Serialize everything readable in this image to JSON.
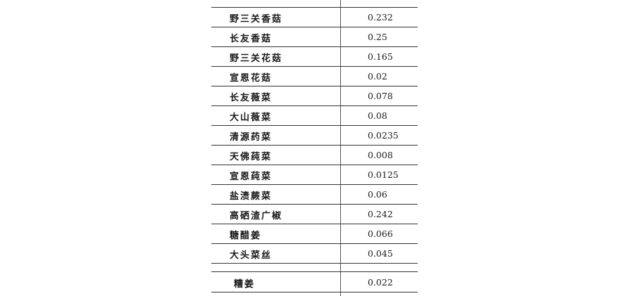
{
  "table": {
    "rows": [
      {
        "name": "野三关香菇",
        "value": "0.232"
      },
      {
        "name": "长友香菇",
        "value": "0.25"
      },
      {
        "name": "野三关花菇",
        "value": "0.165"
      },
      {
        "name": "宣恩花菇",
        "value": "0.02"
      },
      {
        "name": "长友薇菜",
        "value": "0.078"
      },
      {
        "name": "大山薇菜",
        "value": "0.08"
      },
      {
        "name": "清源药菜",
        "value": "0.0235"
      },
      {
        "name": "天佛莼菜",
        "value": "0.008"
      },
      {
        "name": "宣恩莼菜",
        "value": "0.0125"
      },
      {
        "name": "盐渍蕨菜",
        "value": "0.06"
      },
      {
        "name": "高硒渣广椒",
        "value": "0.242"
      },
      {
        "name": "糖醋姜",
        "value": "0.066"
      },
      {
        "name": "大头菜丝",
        "value": "0.045"
      },
      {
        "name": "糟姜",
        "value": "0.022"
      }
    ]
  }
}
